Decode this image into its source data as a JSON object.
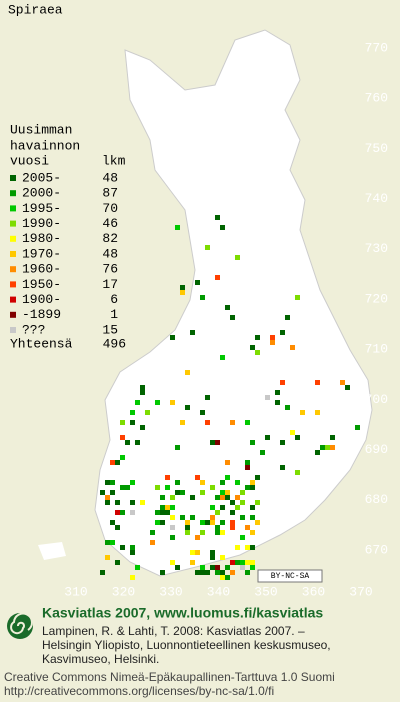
{
  "title": "Spiraea",
  "legend": {
    "header": [
      "Uusimman",
      "havainnon",
      "vuosi"
    ],
    "count_header": "lkm",
    "rows": [
      {
        "label": "2005-",
        "count": 48,
        "color": "#006400"
      },
      {
        "label": "2000-",
        "count": 87,
        "color": "#009a00"
      },
      {
        "label": "1995-",
        "count": 70,
        "color": "#00c800"
      },
      {
        "label": "1990-",
        "count": 46,
        "color": "#7ddc00"
      },
      {
        "label": "1980-",
        "count": 82,
        "color": "#ffff00"
      },
      {
        "label": "1970-",
        "count": 48,
        "color": "#ffc800"
      },
      {
        "label": "1960-",
        "count": 76,
        "color": "#ff8c00"
      },
      {
        "label": "1950-",
        "count": 17,
        "color": "#ff4000"
      },
      {
        "label": "1900-",
        "count": 6,
        "color": "#d00000"
      },
      {
        "label": "-1899",
        "count": 1,
        "color": "#800000"
      },
      {
        "label": "???",
        "count": 15,
        "color": "#c8c8c8"
      }
    ],
    "total_label": "Yhteensä",
    "total": 496
  },
  "grid_labels": {
    "north": [
      770,
      760,
      750,
      740,
      730,
      720,
      710,
      700,
      690,
      680,
      670
    ],
    "east": [
      310,
      320,
      330,
      340,
      350,
      360,
      370
    ]
  },
  "license_badge": "BY-NC-SA",
  "footer": {
    "heading": "Kasviatlas 2007, www.luomus.fi/kasviatlas",
    "citation": [
      "Lampinen, R. & Lahti, T. 2008: Kasviatlas 2007. –",
      "Helsingin Yliopisto, Luonnontieteellinen keskusmuseo,",
      "Kasvimuseo, Helsinki."
    ],
    "license": [
      "Creative Commons Nimeä-Epäkaupallinen-Tarttuva 1.0 Suomi",
      "http://creativecommons.org/licenses/by-nc-sa/1.0/fi"
    ]
  }
}
